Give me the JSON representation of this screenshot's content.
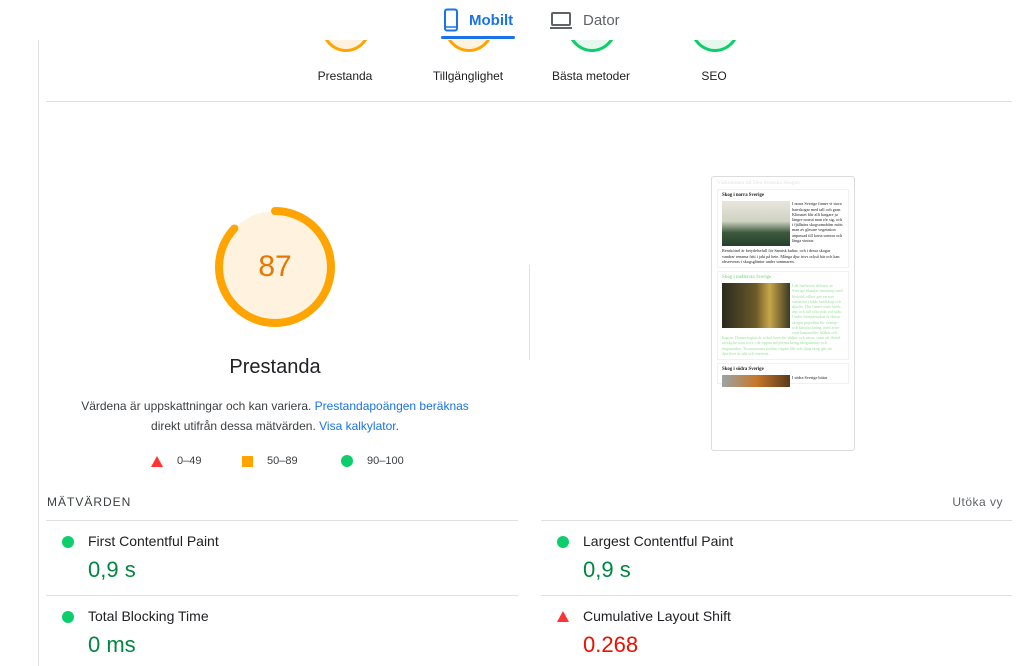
{
  "tabs": [
    {
      "label": "Mobilt",
      "icon": "smartphone-icon",
      "active": true
    },
    {
      "label": "Dator",
      "icon": "laptop-icon",
      "active": false
    }
  ],
  "categories": [
    {
      "label": "Prestanda",
      "color": "#ffa400"
    },
    {
      "label": "Tillgänglighet",
      "color": "#ffa400"
    },
    {
      "label": "Bästa metoder",
      "color": "#0cce6b"
    },
    {
      "label": "SEO",
      "color": "#0cce6b"
    }
  ],
  "gauge": {
    "score": "87",
    "fraction": 0.87,
    "color": "#ffa400",
    "title": "Prestanda"
  },
  "description": {
    "text1": "Värdena är uppskattningar och kan variera. ",
    "link1": "Prestandapoängen beräknas",
    "text2": "direkt utifrån dessa mätvärden. ",
    "link2": "Visa kalkylator",
    "text3": "."
  },
  "legend": [
    {
      "shape": "triangle",
      "range": "0–49",
      "color": "#ff3333"
    },
    {
      "shape": "square",
      "range": "50–89",
      "color": "#ffa400"
    },
    {
      "shape": "circle",
      "range": "90–100",
      "color": "#0cce6b"
    }
  ],
  "thumbnail": {
    "title": "Välkommen till Den Svenska Skogen",
    "sections": [
      {
        "heading": "Skog i norra Sverige",
        "p1": "I norra Sverige finner vi stora barrskogar med tall och gran. Klimatet blir allt kargare ju längre norrut man rör sig, och i fjällnära skogsområden möts man av glesare vegetation anpassad till korta somrar och långa vintrar.",
        "p2": "Renskötsel är betydelsefull för Samisk kultur, och i dessa skogar vandrar renarna fritt i jakt på bete. Många djur trivs också här och kan observeras i skogsgläntor under sommaren."
      },
      {
        "heading": "Skog i mellersta Sverige",
        "p1": "I de mellersta delarna av Sverige blandas barrskog med lövträd, vilket ger en stor variation i både landskap och djurliv. Här finner man björk, asp och tall ofta sida vid sida. Under höstperioden är dessa skogar populära för svamp- och bärplockning, med arter som kantareller, blåbär och lingon. Denna region är också hem för rådjur och rävar, samt ett flertal tavfåglar som trivs i de öppna miljöerna kring skogskanter och ängsmarker. Kontrasterna mellan öppna fält och djup skog gör att djurlivet är rikt och varierat."
      },
      {
        "heading": "Skog i södra Sverige",
        "p1": "I södra Sverige hittar"
      }
    ]
  },
  "metrics": {
    "heading": "MÄTVÄRDEN",
    "expand": "Utöka vy",
    "items": [
      {
        "name": "First Contentful Paint",
        "value": "0,9 s",
        "status": "good",
        "color": "#018642"
      },
      {
        "name": "Largest Contentful Paint",
        "value": "0,9 s",
        "status": "good",
        "color": "#018642"
      },
      {
        "name": "Total Blocking Time",
        "value": "0 ms",
        "status": "good",
        "color": "#018642"
      },
      {
        "name": "Cumulative Layout Shift",
        "value": "0.268",
        "status": "poor",
        "color": "#eb0f00"
      }
    ]
  }
}
